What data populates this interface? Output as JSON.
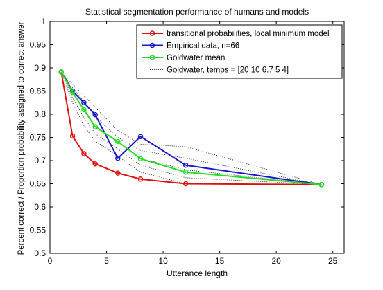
{
  "chart_data": {
    "type": "line",
    "title": "Statistical segmentation performance of humans and models",
    "xlabel": "Utterance length",
    "ylabel": "Percent correct / Proportion probability assigned to correct answer",
    "xlim": [
      0,
      26
    ],
    "ylim": [
      0.5,
      1
    ],
    "xticks": [
      0,
      5,
      10,
      15,
      20,
      25
    ],
    "yticks": [
      0.5,
      0.55,
      0.6,
      0.65,
      0.7,
      0.75,
      0.8,
      0.85,
      0.9,
      0.95,
      1
    ],
    "grid": false,
    "legend_position": "top-right",
    "series": [
      {
        "name": "transitional probabilities, local minimum model",
        "color": "#e01010",
        "style": "solid",
        "marker": "circle",
        "x": [
          1,
          2,
          3,
          4,
          6,
          8,
          12,
          24
        ],
        "y": [
          0.891,
          0.753,
          0.715,
          0.693,
          0.673,
          0.66,
          0.65,
          0.648
        ]
      },
      {
        "name": "Empirical data, n=66",
        "color": "#1818c8",
        "style": "solid",
        "marker": "circle",
        "x": [
          1,
          2,
          3,
          4,
          6,
          8,
          12,
          24
        ],
        "y": [
          0.891,
          0.85,
          0.825,
          0.799,
          0.705,
          0.752,
          0.69,
          0.648
        ]
      },
      {
        "name": "Goldwater mean",
        "color": "#22dd22",
        "style": "solid",
        "marker": "circle",
        "x": [
          1,
          2,
          3,
          4,
          6,
          8,
          12,
          24
        ],
        "y": [
          0.891,
          0.847,
          0.81,
          0.773,
          0.741,
          0.704,
          0.675,
          0.648
        ]
      },
      {
        "name": "Goldwater, temps = [20 10 6.7 5 4]",
        "color": "#000000",
        "style": "dotted",
        "marker": "none",
        "lines": [
          {
            "x": [
              1,
              2,
              3,
              4,
              6,
              8,
              12,
              24
            ],
            "y": [
              0.891,
              0.865,
              0.84,
              0.815,
              0.765,
              0.735,
              0.73,
              0.648
            ]
          },
          {
            "x": [
              1,
              2,
              3,
              4,
              6,
              8,
              12,
              24
            ],
            "y": [
              0.891,
              0.857,
              0.828,
              0.795,
              0.75,
              0.722,
              0.705,
              0.648
            ]
          },
          {
            "x": [
              1,
              2,
              3,
              4,
              6,
              8,
              12,
              24
            ],
            "y": [
              0.891,
              0.847,
              0.81,
              0.775,
              0.74,
              0.705,
              0.68,
              0.648
            ]
          },
          {
            "x": [
              1,
              2,
              3,
              4,
              6,
              8,
              12,
              24
            ],
            "y": [
              0.891,
              0.835,
              0.793,
              0.758,
              0.725,
              0.69,
              0.663,
              0.648
            ]
          },
          {
            "x": [
              1,
              2,
              3,
              4,
              6,
              8,
              12,
              24
            ],
            "y": [
              0.891,
              0.825,
              0.775,
              0.742,
              0.71,
              0.675,
              0.65,
              0.648
            ]
          }
        ]
      }
    ]
  }
}
